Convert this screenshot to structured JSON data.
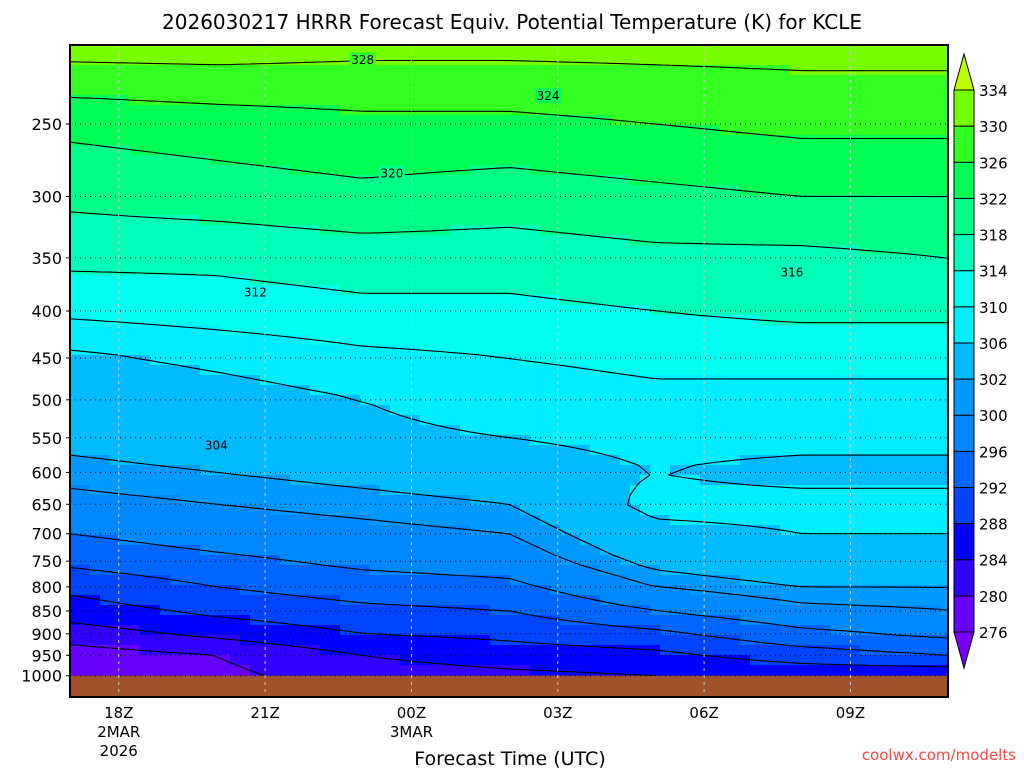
{
  "chart_data": {
    "type": "heatmap",
    "subtype": "filled-contour time-height cross section",
    "title": "2026030217 HRRR Forecast Equiv. Potential Temperature (K) for KCLE",
    "xlabel": "Forecast Time (UTC)",
    "ylabel": "",
    "credit": "coolwx.com/modelts",
    "xlim": [
      17,
      35
    ],
    "ylim": [
      205,
      1055
    ],
    "yscale": "log",
    "grid": true,
    "ground_pressure": 1000,
    "x_ticks": [
      {
        "hour": 18,
        "label": "18Z",
        "sub1": "2MAR",
        "sub2": "2026"
      },
      {
        "hour": 21,
        "label": "21Z",
        "sub1": "",
        "sub2": ""
      },
      {
        "hour": 24,
        "label": "00Z",
        "sub1": "3MAR",
        "sub2": ""
      },
      {
        "hour": 27,
        "label": "03Z",
        "sub1": "",
        "sub2": ""
      },
      {
        "hour": 30,
        "label": "06Z",
        "sub1": "",
        "sub2": ""
      },
      {
        "hour": 33,
        "label": "09Z",
        "sub1": "",
        "sub2": ""
      }
    ],
    "y_ticks": [
      "250",
      "300",
      "350",
      "400",
      "450",
      "500",
      "550",
      "600",
      "650",
      "700",
      "750",
      "800",
      "850",
      "900",
      "950",
      "1000"
    ],
    "colorbar": {
      "levels": [
        276,
        280,
        284,
        288,
        292,
        296,
        300,
        302,
        306,
        310,
        314,
        318,
        322,
        326,
        330,
        334
      ],
      "labels": [
        "276",
        "280",
        "284",
        "288",
        "292",
        "296",
        "300",
        "302",
        "306",
        "310",
        "314",
        "318",
        "322",
        "326",
        "330",
        "334"
      ],
      "colors": [
        "#7700ff",
        "#6600ff",
        "#3300ff",
        "#0000ff",
        "#0044ff",
        "#0066ff",
        "#0088ff",
        "#0099ff",
        "#00bbff",
        "#00eeff",
        "#00ffee",
        "#00ffbb",
        "#00ff88",
        "#00ff55",
        "#33ff22",
        "#77ff00",
        "#bbff00"
      ],
      "extend": "both"
    },
    "contour_labels": [
      {
        "value": "328",
        "hour": 23.0,
        "p": 213
      },
      {
        "value": "324",
        "hour": 26.8,
        "p": 233
      },
      {
        "value": "320",
        "hour": 23.6,
        "p": 283
      },
      {
        "value": "316",
        "hour": 31.8,
        "p": 363
      },
      {
        "value": "312",
        "hour": 20.8,
        "p": 382
      },
      {
        "value": "304",
        "hour": 20.0,
        "p": 561
      }
    ],
    "field": {
      "units": "K",
      "hours": [
        17,
        20,
        23,
        26,
        29,
        32,
        35
      ],
      "pressure": [
        200,
        250,
        300,
        350,
        400,
        450,
        500,
        550,
        600,
        650,
        700,
        750,
        800,
        850,
        900,
        950,
        1000
      ],
      "values": [
        [
          333,
          333,
          332,
          332,
          332,
          332,
          332
        ],
        [
          323,
          324,
          325,
          325,
          326,
          327,
          327
        ],
        [
          319,
          320,
          321,
          320,
          321,
          322,
          322
        ],
        [
          315,
          315,
          316,
          316,
          317,
          317,
          318
        ],
        [
          311,
          312,
          313,
          313,
          314,
          315,
          315
        ],
        [
          305,
          307,
          309,
          310,
          311,
          311,
          311
        ],
        [
          303,
          304,
          306,
          308,
          309,
          309,
          309
        ],
        [
          303,
          304,
          305,
          306,
          307,
          307,
          307
        ],
        [
          301,
          302,
          303,
          304,
          306,
          305,
          305
        ],
        [
          299,
          300,
          301,
          302,
          307,
          307,
          307
        ],
        [
          296,
          298,
          299,
          300,
          305,
          306,
          306
        ],
        [
          293,
          295,
          297,
          298,
          303,
          305,
          305
        ],
        [
          289,
          292,
          294,
          295,
          300,
          302,
          302
        ],
        [
          286,
          289,
          291,
          292,
          296,
          299,
          300
        ],
        [
          282,
          285,
          288,
          289,
          291,
          295,
          297
        ],
        [
          278,
          280,
          284,
          286,
          287,
          290,
          292
        ],
        [
          279,
          279,
          282,
          283,
          284,
          285,
          285
        ]
      ]
    }
  }
}
